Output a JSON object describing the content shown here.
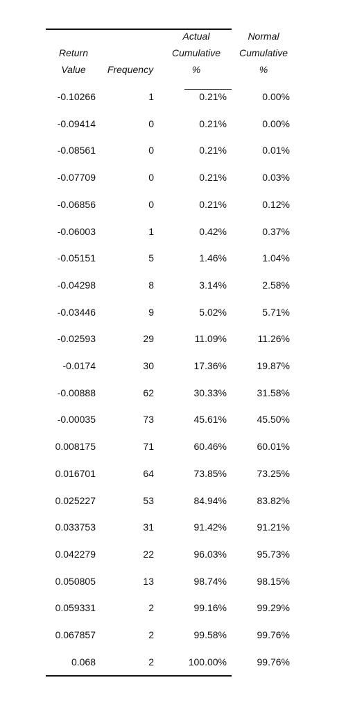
{
  "table": {
    "headers": {
      "return": [
        "Return",
        "Value"
      ],
      "frequency": [
        "Frequency"
      ],
      "actual": [
        "Actual",
        "Cumulative",
        "%"
      ],
      "normal": [
        "Normal",
        "Cumulative",
        "%"
      ]
    },
    "rows": [
      {
        "ret": "-0.10266",
        "freq": "1",
        "act": "0.21%",
        "norm": "0.00%"
      },
      {
        "ret": "-0.09414",
        "freq": "0",
        "act": "0.21%",
        "norm": "0.00%"
      },
      {
        "ret": "-0.08561",
        "freq": "0",
        "act": "0.21%",
        "norm": "0.01%"
      },
      {
        "ret": "-0.07709",
        "freq": "0",
        "act": "0.21%",
        "norm": "0.03%"
      },
      {
        "ret": "-0.06856",
        "freq": "0",
        "act": "0.21%",
        "norm": "0.12%"
      },
      {
        "ret": "-0.06003",
        "freq": "1",
        "act": "0.42%",
        "norm": "0.37%"
      },
      {
        "ret": "-0.05151",
        "freq": "5",
        "act": "1.46%",
        "norm": "1.04%"
      },
      {
        "ret": "-0.04298",
        "freq": "8",
        "act": "3.14%",
        "norm": "2.58%"
      },
      {
        "ret": "-0.03446",
        "freq": "9",
        "act": "5.02%",
        "norm": "5.71%"
      },
      {
        "ret": "-0.02593",
        "freq": "29",
        "act": "11.09%",
        "norm": "11.26%"
      },
      {
        "ret": "-0.0174",
        "freq": "30",
        "act": "17.36%",
        "norm": "19.87%"
      },
      {
        "ret": "-0.00888",
        "freq": "62",
        "act": "30.33%",
        "norm": "31.58%"
      },
      {
        "ret": "-0.00035",
        "freq": "73",
        "act": "45.61%",
        "norm": "45.50%"
      },
      {
        "ret": "0.008175",
        "freq": "71",
        "act": "60.46%",
        "norm": "60.01%"
      },
      {
        "ret": "0.016701",
        "freq": "64",
        "act": "73.85%",
        "norm": "73.25%"
      },
      {
        "ret": "0.025227",
        "freq": "53",
        "act": "84.94%",
        "norm": "83.82%"
      },
      {
        "ret": "0.033753",
        "freq": "31",
        "act": "91.42%",
        "norm": "91.21%"
      },
      {
        "ret": "0.042279",
        "freq": "22",
        "act": "96.03%",
        "norm": "95.73%"
      },
      {
        "ret": "0.050805",
        "freq": "13",
        "act": "98.74%",
        "norm": "98.15%"
      },
      {
        "ret": "0.059331",
        "freq": "2",
        "act": "99.16%",
        "norm": "99.29%"
      },
      {
        "ret": "0.067857",
        "freq": "2",
        "act": "99.58%",
        "norm": "99.76%"
      },
      {
        "ret": "0.068",
        "freq": "2",
        "act": "100.00%",
        "norm": "99.76%"
      }
    ]
  }
}
